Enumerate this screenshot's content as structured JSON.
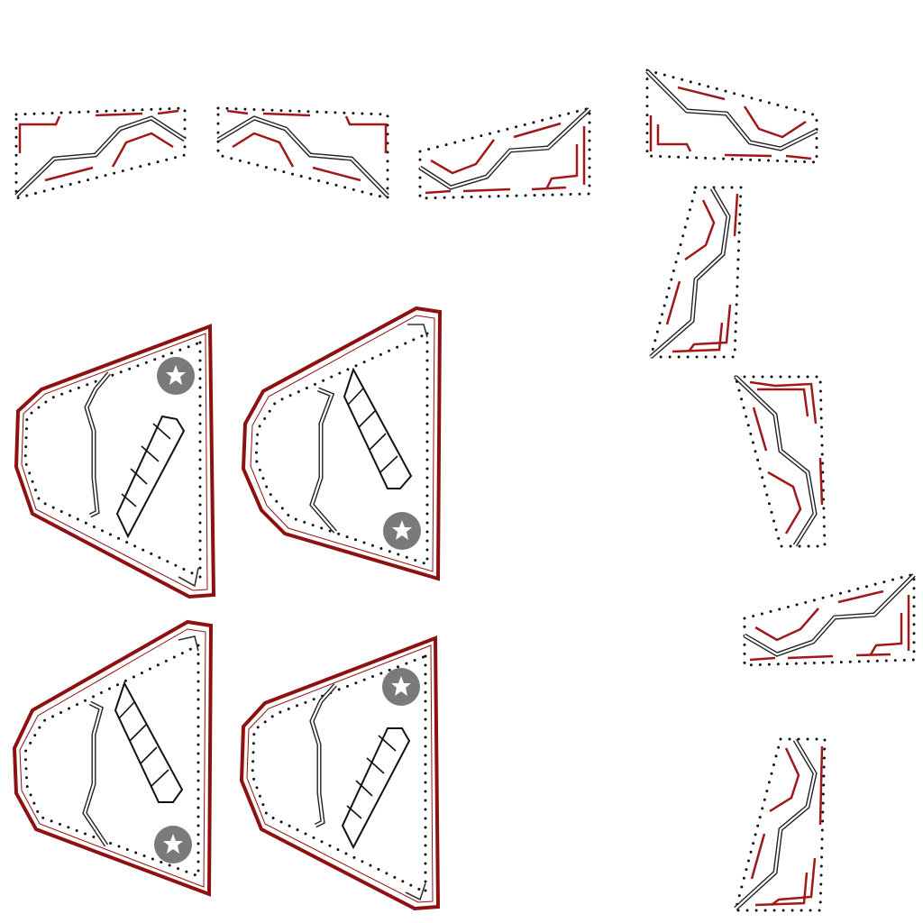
{
  "sprite_sheet": {
    "background": "#ffffff",
    "colors": {
      "wall_red": "#a01818",
      "shield_border": "#8e1111",
      "rail_dark": "#222222",
      "dots": "#111111",
      "badge_gray": "#7a7a7a"
    },
    "track_tiles": [
      {
        "name": "track-tile-1",
        "orientation": "horizontal"
      },
      {
        "name": "track-tile-2",
        "orientation": "horizontal"
      },
      {
        "name": "track-tile-3",
        "orientation": "horizontal"
      },
      {
        "name": "track-tile-4",
        "orientation": "horizontal"
      },
      {
        "name": "track-tile-5",
        "orientation": "vertical"
      },
      {
        "name": "track-tile-6",
        "orientation": "vertical"
      },
      {
        "name": "track-tile-7",
        "orientation": "horizontal"
      },
      {
        "name": "track-tile-8",
        "orientation": "vertical"
      }
    ],
    "shield_panels": [
      {
        "name": "shield-panel-1",
        "facing": "left",
        "badge": "top"
      },
      {
        "name": "shield-panel-2",
        "facing": "left",
        "badge": "bottom"
      },
      {
        "name": "shield-panel-3",
        "facing": "left",
        "badge": "bottom"
      },
      {
        "name": "shield-panel-4",
        "facing": "left",
        "badge": "top"
      }
    ],
    "icons": [
      "star-badge-icon",
      "ladder-icon",
      "rail-icon"
    ]
  }
}
